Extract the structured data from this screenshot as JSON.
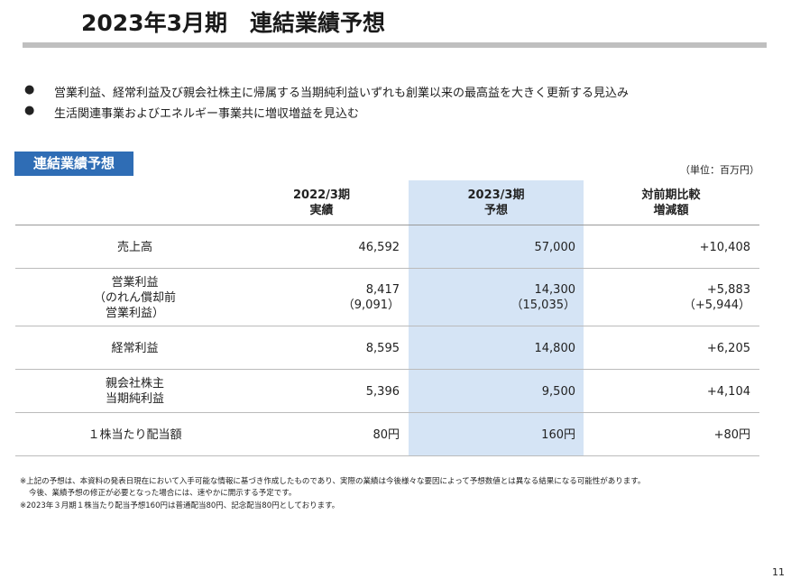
{
  "header": {
    "title": "2023年3月期　連結業績予想"
  },
  "bullets": [
    "営業利益、経常利益及び親会社株主に帰属する当期純利益いずれも創業以来の最高益を大きく更新する見込み",
    "生活関連事業およびエネルギー事業共に増収増益を見込む"
  ],
  "section_label": "連結業績予想",
  "unit": "（単位：百万円）",
  "table": {
    "columns": [
      [
        "2022/3期",
        "実績"
      ],
      [
        "2023/3期",
        "予想"
      ],
      [
        "対前期比較",
        "増減額"
      ]
    ],
    "rows": [
      [
        [
          "売上高"
        ],
        [
          "46,592"
        ],
        [
          "57,000"
        ],
        [
          "+10,408"
        ]
      ],
      [
        [
          "営業利益",
          "（のれん償却前",
          "営業利益）"
        ],
        [
          "8,417",
          "（9,091）"
        ],
        [
          "14,300",
          "（15,035）"
        ],
        [
          "+5,883",
          "（+5,944）"
        ]
      ],
      [
        [
          "経常利益"
        ],
        [
          "8,595"
        ],
        [
          "14,800"
        ],
        [
          "+6,205"
        ]
      ],
      [
        [
          "親会社株主",
          "当期純利益"
        ],
        [
          "5,396"
        ],
        [
          "9,500"
        ],
        [
          "+4,104"
        ]
      ],
      [
        [
          "１株当たり配当額"
        ],
        [
          "80円"
        ],
        [
          "160円"
        ],
        [
          "+80円"
        ]
      ]
    ]
  },
  "footnotes": [
    "※上記の予想は、本資料の発表日現在において入手可能な情報に基づき作成したものであり、実際の業績は今後様々な要因によって予想数値とは異なる結果になる可能性があります。",
    "今後、業績予想の修正が必要となった場合には、速やかに開示する予定です。",
    "※2023年３月期１株当たり配当予想160円は普通配当80円、記念配当80円としております。"
  ],
  "page_number": "11"
}
